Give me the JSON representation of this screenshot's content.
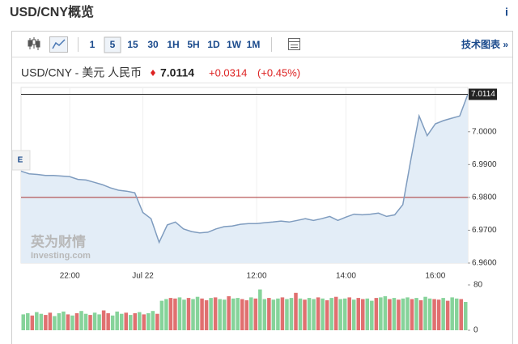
{
  "header": {
    "title": "USD/CNY概览",
    "info": "i"
  },
  "toolbar": {
    "intervals": [
      "1",
      "5",
      "15",
      "30",
      "1H",
      "5H",
      "1D",
      "1W",
      "1M"
    ],
    "active": "5",
    "link": "技术图表 »"
  },
  "quote": {
    "name": "USD/CNY - 美元 人民币",
    "price": "7.0114",
    "change": "+0.0314",
    "change_percent": "(+0.45%)"
  },
  "side_tab": "E",
  "watermark": [
    "英为财情",
    "Investing.com"
  ],
  "chart_data": [
    {
      "type": "line",
      "color": "#7f9cbf",
      "fill": "#e3edf7",
      "categories": [
        null,
        null,
        null,
        null,
        null,
        null,
        "22:00",
        null,
        null,
        null,
        null,
        null,
        null,
        null,
        null,
        "Jul 22",
        null,
        null,
        null,
        null,
        null,
        null,
        null,
        null,
        null,
        null,
        null,
        null,
        null,
        "12:00",
        null,
        null,
        null,
        null,
        null,
        null,
        null,
        null,
        null,
        null,
        "14:00",
        null,
        null,
        null,
        null,
        null,
        null,
        null,
        null,
        null,
        null,
        "16:00",
        null,
        null,
        null,
        null
      ],
      "values": [
        6.988,
        6.9872,
        6.987,
        6.9867,
        6.9867,
        6.9865,
        6.9863,
        6.9855,
        6.9853,
        6.9846,
        6.9839,
        6.9829,
        6.9822,
        6.9819,
        6.9814,
        6.9754,
        6.9735,
        6.9663,
        6.9716,
        6.9725,
        6.9704,
        6.9696,
        6.9692,
        6.9694,
        6.9704,
        6.9711,
        6.9713,
        6.9718,
        6.972,
        6.972,
        6.9723,
        6.9725,
        6.9728,
        6.9725,
        6.973,
        6.9735,
        6.973,
        6.9735,
        6.9742,
        6.973,
        6.974,
        6.9749,
        6.9747,
        6.9749,
        6.9752,
        6.9742,
        6.9747,
        6.9778,
        6.9916,
        7.0048,
        6.9988,
        7.0024,
        7.0034,
        7.0041,
        7.0048,
        7.0114
      ],
      "ylim": [
        6.96,
        7.0135
      ],
      "yticks": [
        {
          "value": 6.96,
          "label": "6.9600"
        },
        {
          "value": 6.97,
          "label": "6.9700"
        },
        {
          "value": 6.98,
          "label": "6.9800"
        },
        {
          "value": 6.99,
          "label": "6.9900"
        },
        {
          "value": 7.0,
          "label": "7.0000"
        }
      ],
      "reference_lines": [
        {
          "value": 6.98,
          "color": "#a83232"
        }
      ],
      "last_price": {
        "value": 7.0114,
        "label": "7.0114"
      }
    },
    {
      "type": "bar",
      "values": [
        28,
        30,
        26,
        32,
        29,
        27,
        31,
        25,
        30,
        33,
        28,
        26,
        30,
        34,
        29,
        27,
        31,
        28,
        35,
        30,
        26,
        33,
        29,
        31,
        27,
        30,
        32,
        28,
        30,
        34,
        29,
        52,
        55,
        57,
        56,
        58,
        54,
        57,
        55,
        59,
        56,
        53,
        57,
        58,
        55,
        54,
        60,
        56,
        57,
        55,
        53,
        58,
        56,
        72,
        55,
        57,
        54,
        56,
        58,
        55,
        57,
        66,
        56,
        54,
        57,
        55,
        58,
        56,
        53,
        57,
        59,
        55,
        56,
        58,
        54,
        57,
        55,
        56,
        52,
        57,
        58,
        60,
        55,
        57,
        54,
        56,
        58,
        55,
        57,
        53,
        59,
        56,
        55,
        54,
        57,
        52,
        58,
        56,
        55,
        50
      ],
      "colors": [
        "#86d39a",
        "#86d39a",
        "#e07070",
        "#86d39a",
        "#86d39a",
        "#e07070",
        "#e07070",
        "#86d39a",
        "#86d39a",
        "#86d39a",
        "#e07070",
        "#86d39a",
        "#e07070",
        "#86d39a",
        "#86d39a",
        "#e07070",
        "#86d39a",
        "#86d39a",
        "#e07070",
        "#e07070",
        "#86d39a",
        "#86d39a",
        "#86d39a",
        "#e07070",
        "#86d39a",
        "#e07070",
        "#86d39a",
        "#e07070",
        "#86d39a",
        "#86d39a",
        "#e07070",
        "#86d39a",
        "#86d39a",
        "#e07070",
        "#e07070",
        "#86d39a",
        "#86d39a",
        "#e07070",
        "#86d39a",
        "#86d39a",
        "#e07070",
        "#e07070",
        "#86d39a",
        "#e07070",
        "#86d39a",
        "#86d39a",
        "#e07070",
        "#86d39a",
        "#86d39a",
        "#e07070",
        "#e07070",
        "#86d39a",
        "#e07070",
        "#86d39a",
        "#86d39a",
        "#e07070",
        "#86d39a",
        "#86d39a",
        "#e07070",
        "#86d39a",
        "#86d39a",
        "#e07070",
        "#86d39a",
        "#e07070",
        "#86d39a",
        "#86d39a",
        "#e07070",
        "#86d39a",
        "#e07070",
        "#86d39a",
        "#e07070",
        "#86d39a",
        "#86d39a",
        "#e07070",
        "#86d39a",
        "#e07070",
        "#e07070",
        "#86d39a",
        "#86d39a",
        "#e07070",
        "#86d39a",
        "#86d39a",
        "#e07070",
        "#86d39a",
        "#e07070",
        "#86d39a",
        "#86d39a",
        "#e07070",
        "#86d39a",
        "#e07070",
        "#86d39a",
        "#86d39a",
        "#e07070",
        "#e07070",
        "#86d39a",
        "#e07070",
        "#86d39a",
        "#86d39a",
        "#e07070",
        "#86d39a"
      ],
      "ylim": [
        0,
        80
      ],
      "yticks": [
        0,
        80
      ]
    }
  ]
}
